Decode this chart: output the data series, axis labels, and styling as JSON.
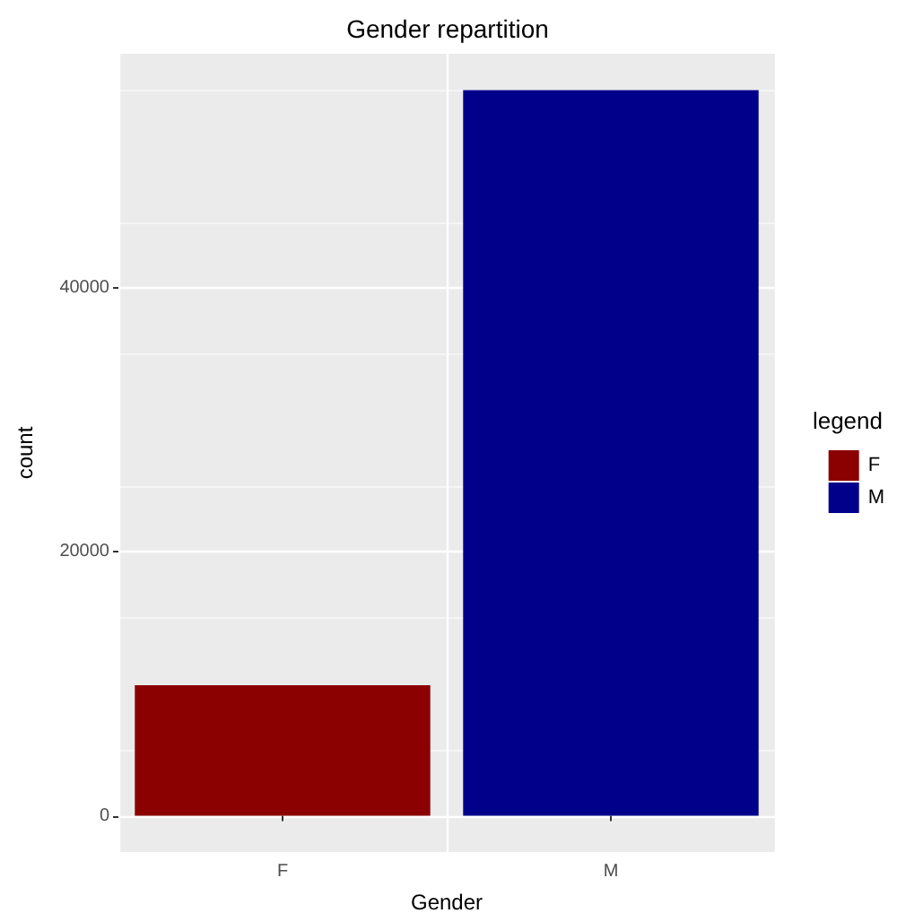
{
  "chart_data": {
    "type": "bar",
    "title": "Gender repartition",
    "xlabel": "Gender",
    "ylabel": "count",
    "legend_title": "legend",
    "categories": [
      "F",
      "M"
    ],
    "series": [
      {
        "name": "F",
        "color": "#8b0000",
        "values": [
          9900,
          null
        ]
      },
      {
        "name": "M",
        "color": "#00008b",
        "values": [
          null,
          55000
        ]
      }
    ],
    "ylim": [
      -2750,
      57750
    ],
    "yticks": [
      0,
      20000,
      40000
    ],
    "grid": true,
    "legend": "right"
  }
}
